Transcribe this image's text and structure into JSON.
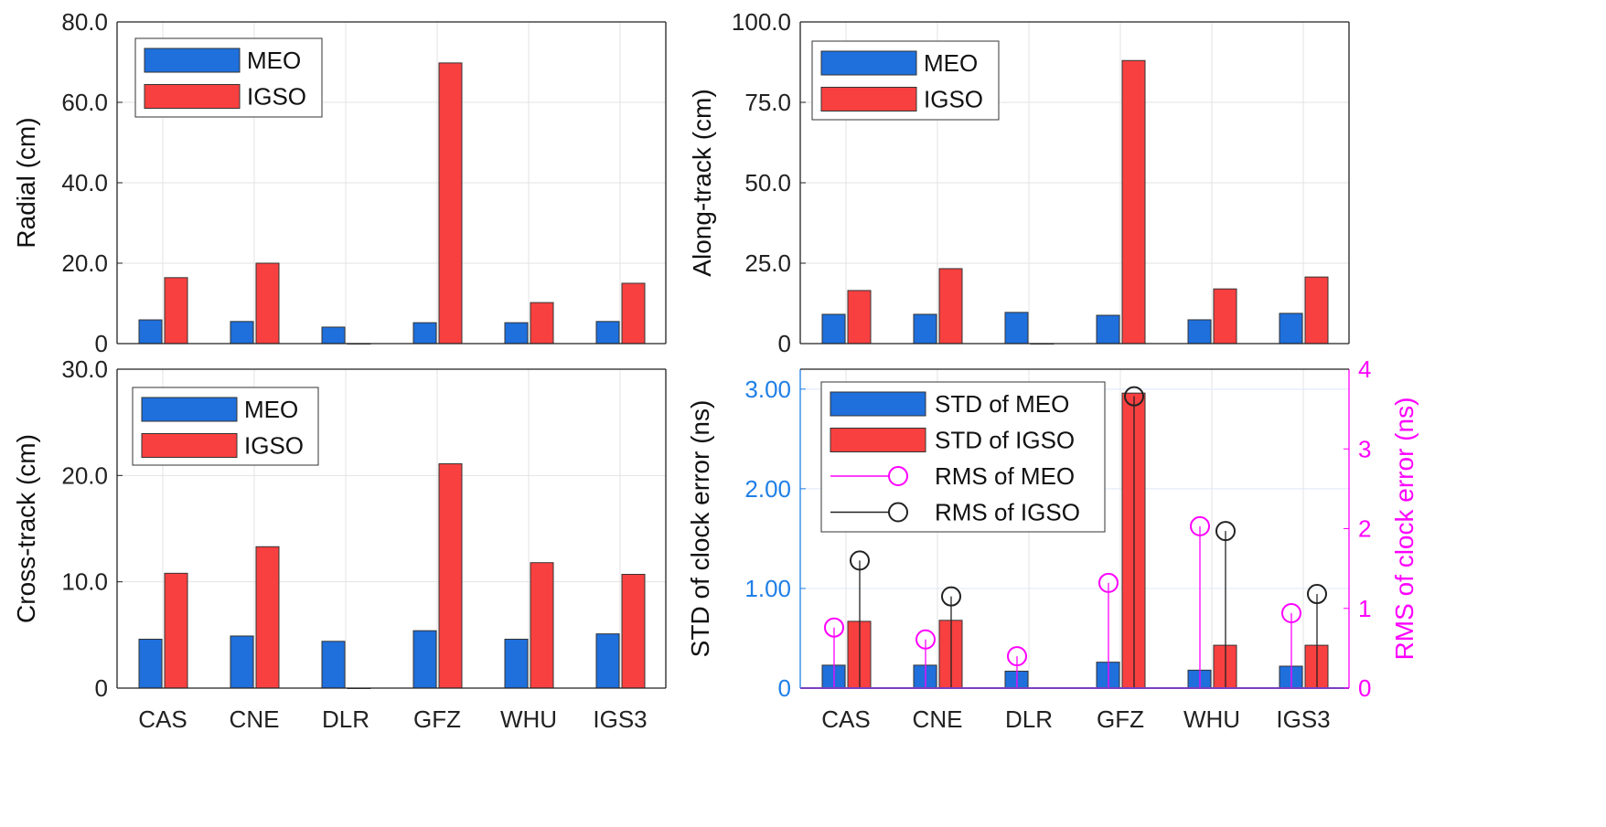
{
  "colors": {
    "meo": "#1f6fdc",
    "igso": "#f94040",
    "rms_meo": "#ff00ff",
    "rms_igso": "#222222",
    "left_axis": "#1f7fe6",
    "right_axis": "#ff00ff"
  },
  "chart_data": [
    {
      "type": "bar",
      "ylabel": "Radial (cm)",
      "categories": [
        "CAS",
        "CNE",
        "DLR",
        "GFZ",
        "WHU",
        "IGS3"
      ],
      "ylim": [
        0,
        80
      ],
      "yticks": [
        0,
        20,
        40,
        60,
        80
      ],
      "ytick_labels": [
        "0",
        "20.0",
        "40.0",
        "60.0",
        "80.0"
      ],
      "grid": true,
      "legend": "top-left",
      "show_xticks": false,
      "series": [
        {
          "name": "MEO",
          "values": [
            5.9,
            5.5,
            4.1,
            5.2,
            5.2,
            5.5
          ]
        },
        {
          "name": "IGSO",
          "values": [
            16.4,
            20.0,
            0,
            69.8,
            10.2,
            15.0
          ]
        }
      ]
    },
    {
      "type": "bar",
      "ylabel": "Along-track (cm)",
      "categories": [
        "CAS",
        "CNE",
        "DLR",
        "GFZ",
        "WHU",
        "IGS3"
      ],
      "ylim": [
        0,
        100
      ],
      "yticks": [
        0,
        25,
        50,
        75,
        100
      ],
      "ytick_labels": [
        "0",
        "25.0",
        "50.0",
        "75.0",
        "100.0"
      ],
      "grid": true,
      "legend": "top-left",
      "show_xticks": false,
      "series": [
        {
          "name": "MEO",
          "values": [
            9.1,
            9.1,
            9.7,
            8.8,
            7.4,
            9.4
          ]
        },
        {
          "name": "IGSO",
          "values": [
            16.5,
            23.3,
            0,
            88.0,
            17.0,
            20.7
          ]
        }
      ]
    },
    {
      "type": "bar",
      "ylabel": "Cross-track (cm)",
      "categories": [
        "CAS",
        "CNE",
        "DLR",
        "GFZ",
        "WHU",
        "IGS3"
      ],
      "ylim": [
        0,
        30
      ],
      "yticks": [
        0,
        10,
        20,
        30
      ],
      "ytick_labels": [
        "0",
        "10.0",
        "20.0",
        "30.0"
      ],
      "grid": true,
      "legend": "top-left",
      "show_xticks": true,
      "series": [
        {
          "name": "MEO",
          "values": [
            4.6,
            4.9,
            4.4,
            5.4,
            4.6,
            5.1
          ]
        },
        {
          "name": "IGSO",
          "values": [
            10.8,
            13.3,
            0,
            21.1,
            11.8,
            10.7
          ]
        }
      ]
    },
    {
      "type": "bar",
      "ylabel": "STD of clock error (ns)",
      "ylabel_right": "RMS of clock error (ns)",
      "categories": [
        "CAS",
        "CNE",
        "DLR",
        "GFZ",
        "WHU",
        "IGS3"
      ],
      "ylim": [
        0,
        3.2
      ],
      "yticks": [
        0,
        1,
        2,
        3
      ],
      "ytick_labels": [
        "0",
        "1.00",
        "2.00",
        "3.00"
      ],
      "ylim_right": [
        0,
        4
      ],
      "yticks_right": [
        0,
        1,
        2,
        3,
        4
      ],
      "ytick_labels_right": [
        "0",
        "1",
        "2",
        "3",
        "4"
      ],
      "grid": true,
      "legend": "top-left",
      "show_xticks": true,
      "series": [
        {
          "name": "STD  of MEO",
          "values": [
            0.23,
            0.23,
            0.17,
            0.26,
            0.18,
            0.22
          ]
        },
        {
          "name": "STD  of IGSO",
          "values": [
            0.67,
            0.68,
            0,
            2.96,
            0.43,
            0.43
          ]
        }
      ],
      "stem_series": [
        {
          "name": "RMS of MEO",
          "values": [
            0.76,
            0.61,
            0.4,
            1.32,
            2.03,
            0.94
          ]
        },
        {
          "name": "RMS of IGSO",
          "values": [
            1.6,
            1.15,
            null,
            3.66,
            1.97,
            1.18
          ]
        }
      ]
    }
  ]
}
